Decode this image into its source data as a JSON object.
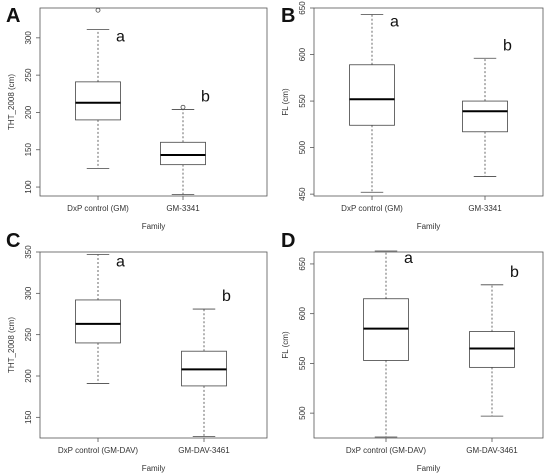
{
  "chart_data": [
    {
      "panel": "A",
      "type": "box",
      "xlabel": "Family",
      "ylabel": "THT_2008 (cm)",
      "ylim": [
        88,
        340
      ],
      "yticks": [
        100,
        150,
        200,
        250,
        300
      ],
      "categories": [
        "DxP control (GM)",
        "GM-3341"
      ],
      "boxes": [
        {
          "whisker_low": 125,
          "q1": 190,
          "median": 213,
          "q3": 241,
          "whisker_high": 311,
          "outliers": [
            337
          ],
          "sig": "a"
        },
        {
          "whisker_low": 90,
          "q1": 130,
          "median": 143,
          "q3": 160,
          "whisker_high": 204,
          "outliers": [
            207
          ],
          "sig": "b"
        }
      ]
    },
    {
      "panel": "B",
      "type": "box",
      "xlabel": "Family",
      "ylabel": "FL (cm)",
      "ylim": [
        448,
        650
      ],
      "yticks": [
        450,
        500,
        550,
        600,
        650
      ],
      "categories": [
        "DxP control (GM)",
        "GM-3341"
      ],
      "boxes": [
        {
          "whisker_low": 452,
          "q1": 524,
          "median": 552,
          "q3": 589,
          "whisker_high": 643,
          "outliers": [],
          "sig": "a"
        },
        {
          "whisker_low": 469,
          "q1": 517,
          "median": 539,
          "q3": 550,
          "whisker_high": 596,
          "outliers": [],
          "sig": "b"
        }
      ]
    },
    {
      "panel": "C",
      "type": "box",
      "xlabel": "Family",
      "ylabel": "THT_2008 (cm)",
      "ylim": [
        125,
        350
      ],
      "yticks": [
        150,
        200,
        250,
        300,
        350
      ],
      "categories": [
        "DxP control (GM-DAV)",
        "GM-DAV-3461"
      ],
      "boxes": [
        {
          "whisker_low": 191,
          "q1": 240,
          "median": 263,
          "q3": 292,
          "whisker_high": 347,
          "outliers": [],
          "sig": "a"
        },
        {
          "whisker_low": 127,
          "q1": 188,
          "median": 208,
          "q3": 230,
          "whisker_high": 281,
          "outliers": [],
          "sig": "b"
        }
      ]
    },
    {
      "panel": "D",
      "type": "box",
      "xlabel": "Family",
      "ylabel": "FL (cm)",
      "ylim": [
        475,
        662
      ],
      "yticks": [
        500,
        550,
        600,
        650
      ],
      "categories": [
        "DxP control (GM-DAV)",
        "GM-DAV-3461"
      ],
      "boxes": [
        {
          "whisker_low": 476,
          "q1": 553,
          "median": 585,
          "q3": 615,
          "whisker_high": 663,
          "outliers": [],
          "sig": "a"
        },
        {
          "whisker_low": 497,
          "q1": 546,
          "median": 565,
          "q3": 582,
          "whisker_high": 629,
          "outliers": [],
          "sig": "b"
        }
      ]
    }
  ]
}
